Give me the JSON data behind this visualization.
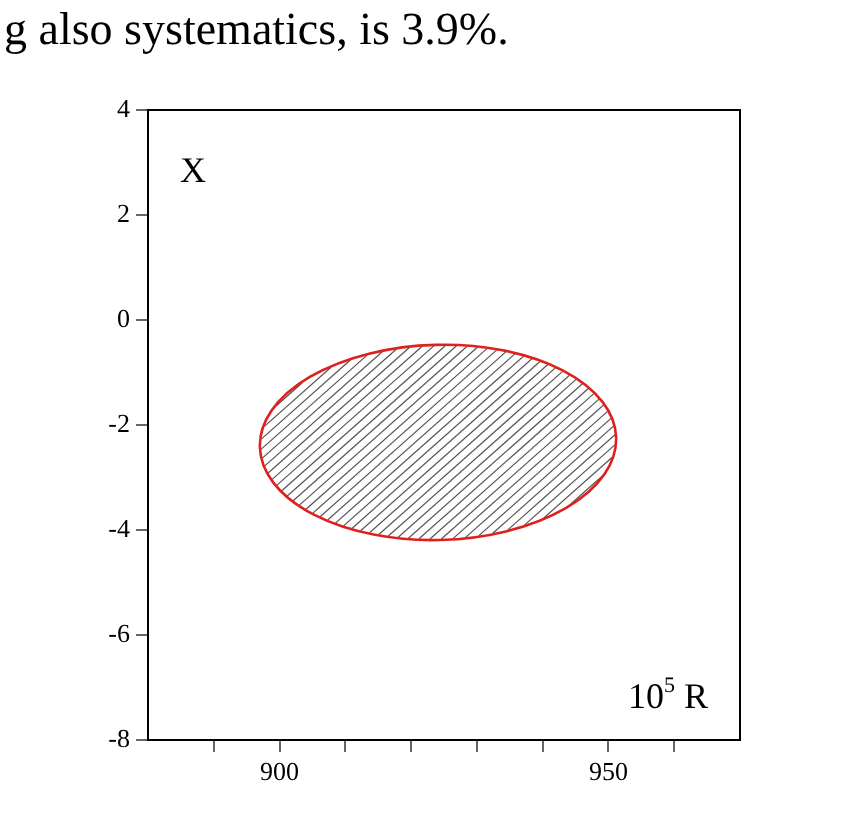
{
  "chart_data": {
    "type": "scatter",
    "title": "g also systematics, is 3.9%.",
    "xlabel": "10$^{5}$ R",
    "ylabel": "X",
    "xlim": [
      880,
      970
    ],
    "xticks": [
      {
        "value": 890,
        "label": null
      },
      900,
      {
        "value": 910,
        "label": null
      },
      {
        "value": 920,
        "label": null
      },
      {
        "value": 930,
        "label": null
      },
      {
        "value": 940,
        "label": null
      },
      950,
      {
        "value": 960,
        "label": null
      }
    ],
    "ylim": [
      -8,
      4
    ],
    "yticks": [
      -8,
      -6,
      -4,
      -2,
      0,
      2,
      4
    ],
    "grid": false,
    "legend": false
  }
}
